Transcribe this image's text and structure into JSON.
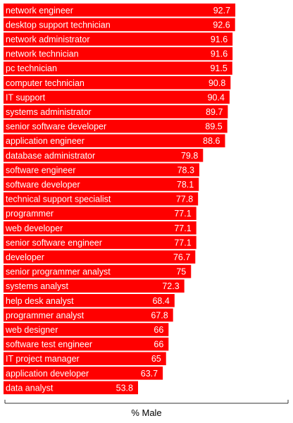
{
  "chart_data": {
    "type": "bar",
    "orientation": "horizontal",
    "xlabel": "% Male",
    "xlim": [
      0,
      100
    ],
    "color": "#ff0000",
    "label_color": "#ffffff",
    "categories": [
      "network engineer",
      "desktop support technician",
      "network administrator",
      "network technician",
      "pc technician",
      "computer technician",
      "IT support",
      "systems administrator",
      "senior software developer",
      "application engineer",
      "database administrator",
      "software engineer",
      "software developer",
      "technical support specialist",
      "programmer",
      "web developer",
      "senior software engineer",
      "developer",
      "senior programmer analyst",
      "systems analyst",
      "help desk analyst",
      "programmer analyst",
      "web designer",
      "software test engineer",
      "IT project manager",
      "application developer",
      "data analyst"
    ],
    "values": [
      92.7,
      92.6,
      91.6,
      91.6,
      91.5,
      90.8,
      90.4,
      89.7,
      89.5,
      88.6,
      79.8,
      78.3,
      78.1,
      77.8,
      77.1,
      77.1,
      77.1,
      76.7,
      75,
      72.3,
      68.4,
      67.8,
      66,
      66,
      65,
      63.7,
      53.8
    ]
  }
}
